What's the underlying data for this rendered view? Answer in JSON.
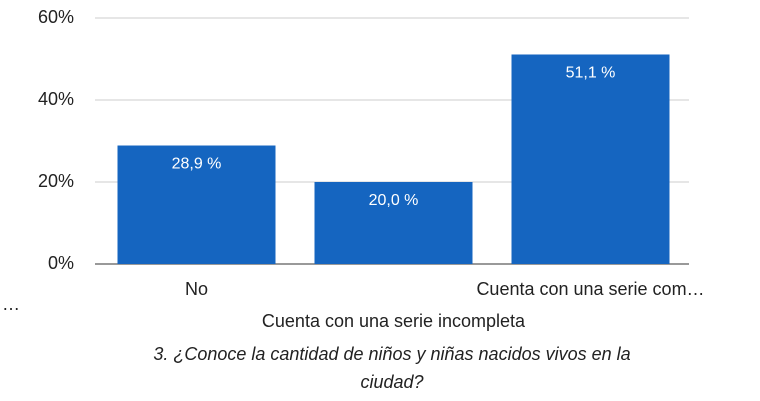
{
  "chart_data": {
    "type": "bar",
    "title": "3. ¿Conoce la cantidad de niños y niñas nacidos vivos en la ciudad?",
    "categories": [
      "No",
      "Cuenta con una serie incompleta",
      "Cuenta con una serie com…"
    ],
    "values": [
      28.9,
      20.0,
      51.1
    ],
    "value_labels": [
      "28,9 %",
      "20,0 %",
      "51,1 %"
    ],
    "color": "#1565c0",
    "ylim": [
      0,
      60
    ],
    "yticks": [
      {
        "value": 0,
        "label": "0%"
      },
      {
        "value": 20,
        "label": "20%"
      },
      {
        "value": 40,
        "label": "40%"
      },
      {
        "value": 60,
        "label": "60%"
      }
    ],
    "grid": true,
    "annotations": [
      "…"
    ]
  }
}
